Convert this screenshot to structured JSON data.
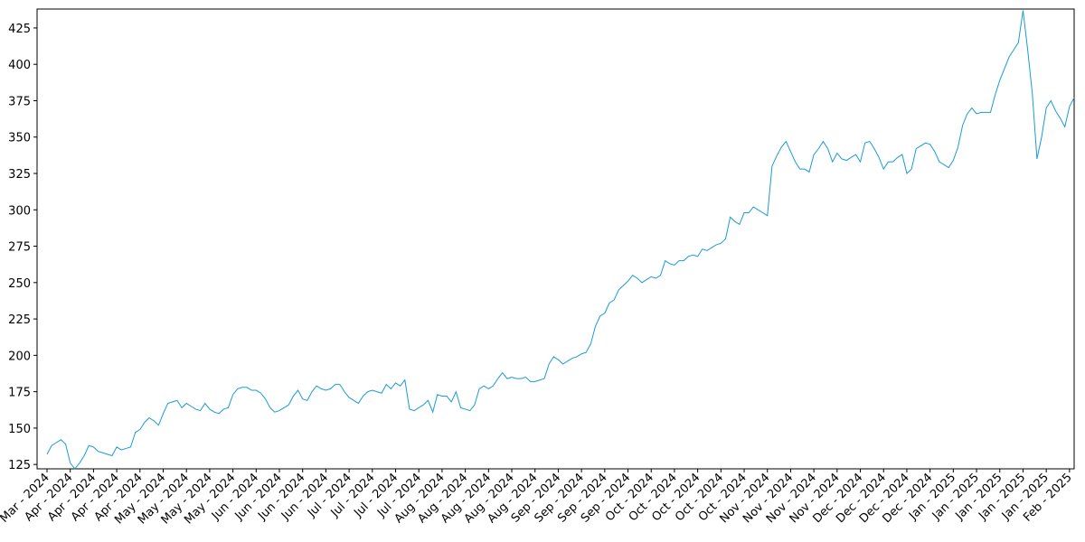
{
  "chart_data": {
    "type": "line",
    "categories": [
      "Mar - 2024",
      null,
      null,
      null,
      null,
      "Apr - 2024",
      null,
      null,
      null,
      null,
      "Apr - 2024",
      null,
      null,
      null,
      null,
      "Apr - 2024",
      null,
      null,
      null,
      null,
      "Apr - 2024",
      null,
      null,
      null,
      null,
      "May - 2024",
      null,
      null,
      null,
      null,
      "May - 2024",
      null,
      null,
      null,
      null,
      "May - 2024",
      null,
      null,
      null,
      null,
      "May - 2024",
      null,
      null,
      null,
      null,
      "Jun - 2024",
      null,
      null,
      null,
      null,
      "Jun - 2024",
      null,
      null,
      null,
      null,
      "Jun - 2024",
      null,
      null,
      null,
      null,
      "Jun - 2024",
      null,
      null,
      null,
      null,
      "Jul - 2024",
      null,
      null,
      null,
      null,
      "Jul - 2024",
      null,
      null,
      null,
      null,
      "Jul - 2024",
      null,
      null,
      null,
      null,
      "Jul - 2024",
      null,
      null,
      null,
      null,
      "Aug - 2024",
      null,
      null,
      null,
      null,
      "Aug - 2024",
      null,
      null,
      null,
      null,
      "Aug - 2024",
      null,
      null,
      null,
      null,
      "Aug - 2024",
      null,
      null,
      null,
      null,
      "Aug - 2024",
      null,
      null,
      null,
      null,
      "Sep - 2024",
      null,
      null,
      null,
      null,
      "Sep - 2024",
      null,
      null,
      null,
      null,
      "Sep - 2024",
      null,
      null,
      null,
      null,
      "Sep - 2024",
      null,
      null,
      null,
      null,
      "Oct - 2024",
      null,
      null,
      null,
      null,
      "Oct - 2024",
      null,
      null,
      null,
      null,
      "Oct - 2024",
      null,
      null,
      null,
      null,
      "Oct - 2024",
      null,
      null,
      null,
      null,
      "Oct - 2024",
      null,
      null,
      null,
      null,
      "Nov - 2024",
      null,
      null,
      null,
      null,
      "Nov - 2024",
      null,
      null,
      null,
      null,
      "Nov - 2024",
      null,
      null,
      null,
      null,
      "Nov - 2024",
      null,
      null,
      null,
      null,
      "Dec - 2024",
      null,
      null,
      null,
      null,
      "Dec - 2024",
      null,
      null,
      null,
      null,
      "Dec - 2024",
      null,
      null,
      null,
      null,
      "Dec - 2024",
      null,
      null,
      null,
      null,
      "Jan - 2025",
      null,
      null,
      null,
      null,
      "Jan - 2025",
      null,
      null,
      null,
      null,
      "Jan - 2025",
      null,
      null,
      null,
      null,
      "Jan - 2025",
      null,
      null,
      null,
      null,
      "Jan - 2025",
      null,
      null,
      null,
      null,
      "Feb - 2025",
      null
    ],
    "values": [
      132,
      138,
      140,
      142,
      139,
      126,
      122,
      126,
      131,
      138,
      137,
      134,
      133,
      132,
      131,
      137,
      135,
      136,
      137,
      147,
      149,
      154,
      157,
      155,
      152,
      160,
      167,
      168,
      169,
      164,
      167,
      165,
      163,
      162,
      167,
      163,
      161,
      160,
      163,
      164,
      173,
      177,
      178,
      178,
      176,
      176,
      174,
      170,
      164,
      161,
      162,
      164,
      166,
      172,
      176,
      170,
      169,
      175,
      179,
      177,
      176,
      177,
      180,
      180,
      175,
      171,
      169,
      167,
      172,
      175,
      176,
      175,
      174,
      180,
      177,
      181,
      179,
      183,
      163,
      162,
      164,
      166,
      169,
      161,
      173,
      172,
      172,
      168,
      175,
      164,
      163,
      162,
      166,
      177,
      179,
      177,
      179,
      184,
      188,
      184,
      185,
      184,
      184,
      185,
      182,
      182,
      183,
      184,
      194,
      199,
      197,
      194,
      196,
      198,
      199,
      201,
      202,
      208,
      220,
      227,
      229,
      236,
      238,
      245,
      248,
      251,
      255,
      253,
      250,
      252,
      254,
      253,
      255,
      265,
      263,
      262,
      265,
      265,
      268,
      269,
      268,
      273,
      272,
      274,
      276,
      277,
      280,
      295,
      292,
      290,
      298,
      298,
      302,
      300,
      298,
      296,
      330,
      337,
      343,
      347,
      340,
      333,
      328,
      328,
      326,
      338,
      342,
      347,
      342,
      333,
      339,
      335,
      334,
      336,
      338,
      333,
      346,
      347,
      342,
      336,
      328,
      333,
      333,
      336,
      338,
      325,
      328,
      342,
      344,
      346,
      345,
      340,
      333,
      331,
      329,
      334,
      343,
      358,
      366,
      370,
      366,
      367,
      367,
      367,
      379,
      389,
      397,
      405,
      410,
      415,
      437,
      410,
      380,
      335,
      350,
      370,
      375,
      368,
      363,
      357,
      371,
      377
    ],
    "color": "#1a9bd7",
    "ylim": [
      122,
      438
    ],
    "yticks": [
      125,
      150,
      175,
      200,
      225,
      250,
      275,
      300,
      325,
      350,
      375,
      400,
      425
    ]
  }
}
